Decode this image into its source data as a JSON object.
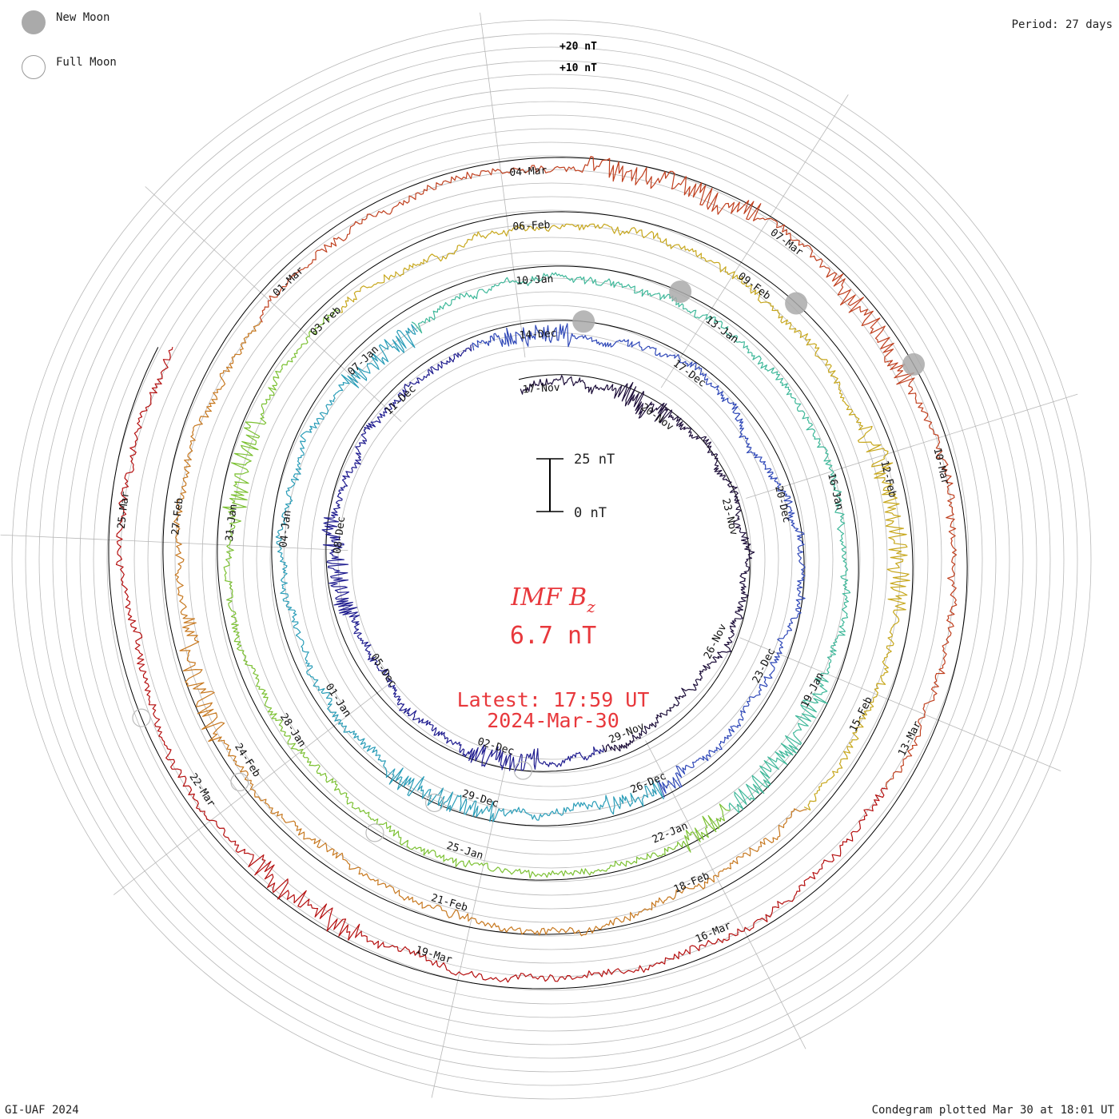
{
  "legend": {
    "new_moon": "New Moon",
    "full_moon": "Full Moon"
  },
  "period_label": "Period: 27 days",
  "credit": "GI-UAF 2024",
  "plotted": "Condegram plotted Mar 30 at 18:01 UT",
  "scale_labels": {
    "top": "+20 nT",
    "mid": "+10 nT"
  },
  "scale_bar": {
    "top": "25 nT",
    "bottom": "0 nT"
  },
  "title": {
    "main": "IMF B",
    "subscript": "z",
    "value": "6.7 nT"
  },
  "latest": {
    "time": "Latest: 17:59 UT",
    "date": "2024-Mar-30"
  },
  "colors": {
    "rings": [
      "#1e0f3a",
      "#1f1c8f",
      "#2f48b8",
      "#2a9db8",
      "#3fb89a",
      "#7cc133",
      "#c7a71c",
      "#c7781f",
      "#c0401f",
      "#b50f0f"
    ],
    "grid": "#b8b8b8",
    "zero_ring": "#000000",
    "moon_new": "#aaaaaa",
    "label_red": "#e8383c"
  },
  "chart_data": {
    "type": "line",
    "layout": "condegram-spiral",
    "period_days": 27,
    "quantity": "IMF Bz",
    "units": "nT",
    "latest_value": 6.7,
    "series": [
      {
        "date_labels": [
          "17-Nov",
          "20-Nov",
          "23-Nov",
          "26-Nov",
          "29-Nov",
          "02-Dec",
          "05-Dec",
          "08-Dec",
          "11-Dec"
        ]
      },
      {
        "date_labels": [
          "14-Dec",
          "17-Dec",
          "20-Dec",
          "23-Dec",
          "26-Dec",
          "29-Dec",
          "01-Jan",
          "04-Jan",
          "07-Jan"
        ]
      },
      {
        "date_labels": [
          "10-Jan",
          "13-Jan",
          "16-Jan",
          "19-Jan",
          "22-Jan",
          "25-Jan",
          "28-Jan",
          "31-Jan",
          "03-Feb"
        ]
      },
      {
        "date_labels": [
          "06-Feb",
          "09-Feb",
          "12-Feb",
          "15-Feb",
          "18-Feb",
          "21-Feb",
          "24-Feb",
          "27-Feb",
          "01-Mar"
        ]
      },
      {
        "date_labels": [
          "04-Mar",
          "07-Mar",
          "10-Mar",
          "13-Mar",
          "16-Mar",
          "19-Mar",
          "22-Mar",
          "25-Mar"
        ]
      }
    ]
  }
}
